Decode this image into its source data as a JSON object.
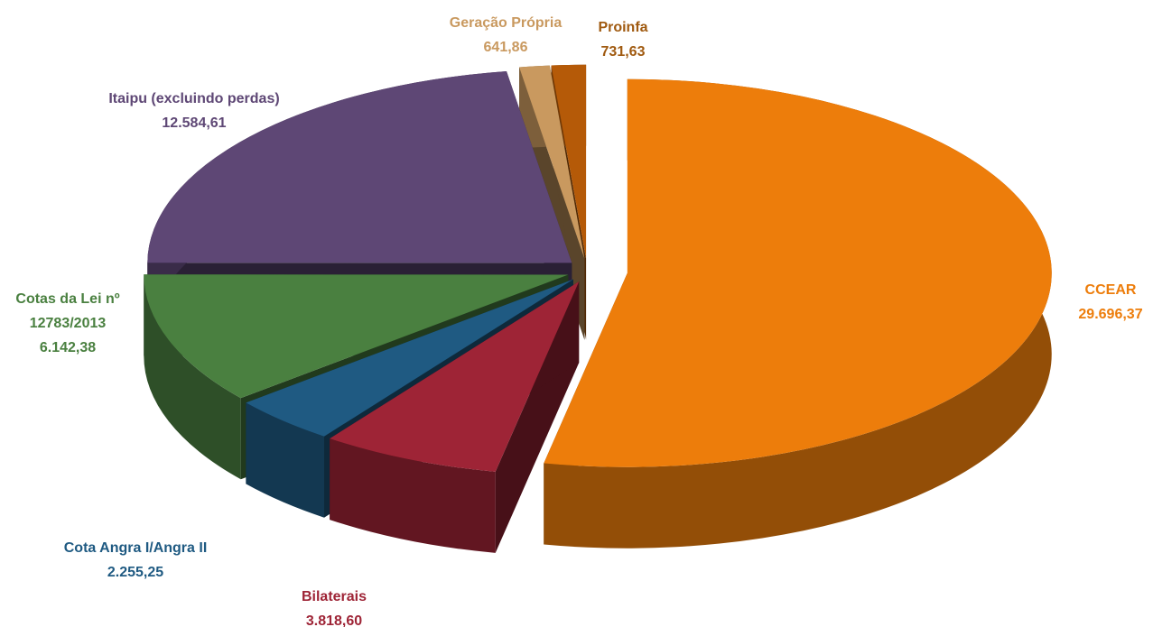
{
  "chart_data": {
    "type": "pie3d",
    "categories": [
      "CCEAR",
      "Bilaterais",
      "Cota Angra I/Angra II",
      "Cotas da Lei nº 12783/2013",
      "Itaipu (excluindo perdas)",
      "Geração Própria",
      "Proinfa"
    ],
    "values": [
      29696.37,
      3818.6,
      2255.25,
      6142.38,
      12584.61,
      641.86,
      731.63
    ],
    "value_labels": [
      "29.696,37",
      "3.818,60",
      "2.255,25",
      "6.142,38",
      "12.584,61",
      "641,86",
      "731,63"
    ],
    "colors": [
      "#ed7d0b",
      "#9e2436",
      "#1f5a82",
      "#4a8040",
      "#5e4775",
      "#c9995f",
      "#b55a08"
    ],
    "label_colors": [
      "#ed7d0b",
      "#9e2436",
      "#1f5a82",
      "#4a8040",
      "#5e4775",
      "#c9995f",
      "#a05a10"
    ]
  }
}
